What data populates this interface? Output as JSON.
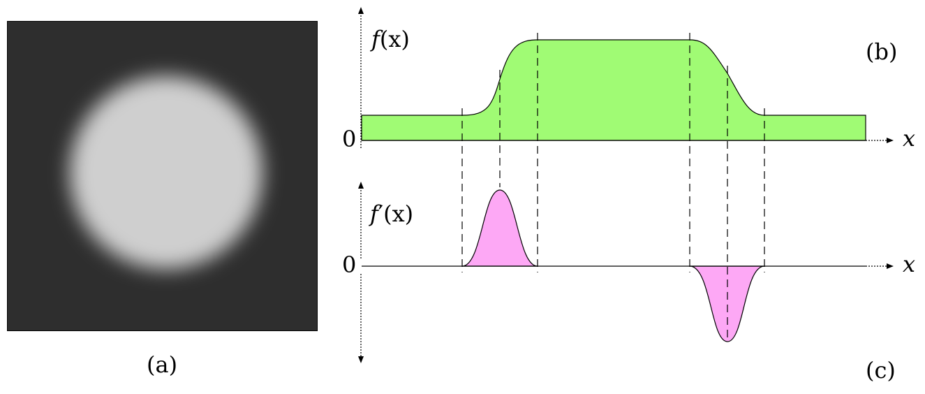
{
  "panel_a": {
    "caption": "(a)",
    "background_color": "#2e2e2e",
    "disc_color": "#cfcfcf"
  },
  "panel_b": {
    "caption": "(b)",
    "ylabel_func": "f",
    "ylabel_arg": "(x)",
    "zero_label": "0",
    "xlabel": "x",
    "fill_color": "#a0fb74"
  },
  "panel_c": {
    "caption": "(c)",
    "ylabel_func": "f",
    "ylabel_prime": "′",
    "ylabel_arg": "(x)",
    "zero_label": "0",
    "xlabel": "x",
    "fill_color": "#fda8f5"
  }
}
